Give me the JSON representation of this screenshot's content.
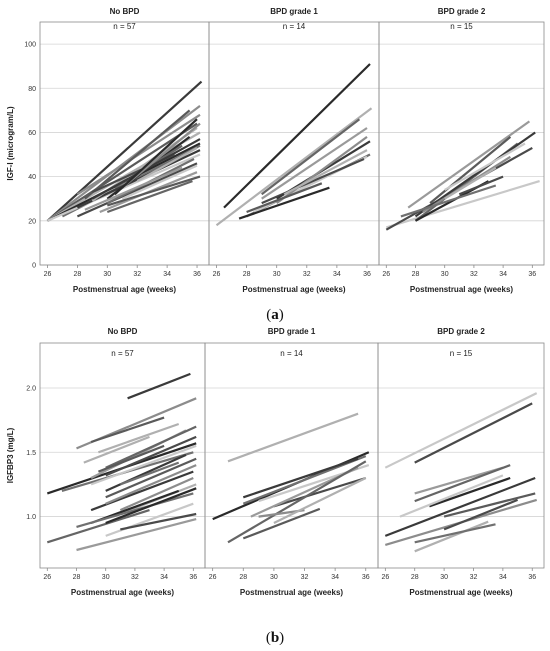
{
  "captions": {
    "a_open": "(",
    "a_letter": "a",
    "a_close": ")",
    "b_open": "(",
    "b_letter": "b",
    "b_close": ")"
  },
  "chart_data": [
    {
      "type": "line",
      "ylabel": "IGF-I (microgram/L)",
      "xlabel": "Postmenstrual age (weeks)",
      "xlim": [
        25.5,
        36.8
      ],
      "ylim": [
        0,
        110
      ],
      "xticks": [
        26,
        28,
        30,
        32,
        34,
        36
      ],
      "yticks": [
        0,
        20,
        40,
        60,
        80,
        100
      ],
      "grid": "horizontal",
      "panels": [
        {
          "title": "No BPD",
          "n_label": "n = 57",
          "series": [
            {
              "x": [
                26,
                36.3
              ],
              "y": [
                20,
                83
              ]
            },
            {
              "x": [
                26,
                36.2
              ],
              "y": [
                20,
                72
              ]
            },
            {
              "x": [
                26,
                36
              ],
              "y": [
                20,
                64
              ]
            },
            {
              "x": [
                26,
                36.2
              ],
              "y": [
                20,
                60
              ]
            },
            {
              "x": [
                26,
                36.2
              ],
              "y": [
                20,
                55
              ]
            },
            {
              "x": [
                27,
                36.2
              ],
              "y": [
                22,
                54
              ]
            },
            {
              "x": [
                26,
                36.2
              ],
              "y": [
                20,
                50
              ]
            },
            {
              "x": [
                28,
                36
              ],
              "y": [
                22,
                46
              ]
            },
            {
              "x": [
                29.5,
                36
              ],
              "y": [
                24,
                42
              ]
            },
            {
              "x": [
                30,
                35.7
              ],
              "y": [
                24,
                38
              ]
            },
            {
              "x": [
                28,
                36.2
              ],
              "y": [
                26,
                52
              ]
            },
            {
              "x": [
                28,
                36.2
              ],
              "y": [
                32,
                68
              ]
            },
            {
              "x": [
                28.5,
                35.5
              ],
              "y": [
                30,
                70
              ]
            },
            {
              "x": [
                29,
                36
              ],
              "y": [
                29,
                62
              ]
            },
            {
              "x": [
                30,
                35.5
              ],
              "y": [
                30,
                58
              ]
            },
            {
              "x": [
                30,
                35.8
              ],
              "y": [
                28,
                48
              ]
            },
            {
              "x": [
                31,
                36
              ],
              "y": [
                30,
                45
              ]
            },
            {
              "x": [
                29,
                34.5
              ],
              "y": [
                33,
                50
              ]
            },
            {
              "x": [
                28.5,
                35
              ],
              "y": [
                25,
                44
              ]
            },
            {
              "x": [
                30.5,
                35
              ],
              "y": [
                35,
                54
              ]
            },
            {
              "x": [
                29,
                36.2
              ],
              "y": [
                30,
                57
              ]
            },
            {
              "x": [
                31,
                36.2
              ],
              "y": [
                35,
                64
              ]
            },
            {
              "x": [
                30,
                36.2
              ],
              "y": [
                27,
                40
              ]
            },
            {
              "x": [
                32,
                36
              ],
              "y": [
                38,
                53
              ]
            },
            {
              "x": [
                30.5,
                36
              ],
              "y": [
                32,
                66
              ]
            }
          ]
        },
        {
          "title": "BPD grade 1",
          "n_label": "n = 14",
          "series": [
            {
              "x": [
                26,
                36.3
              ],
              "y": [
                18,
                71
              ]
            },
            {
              "x": [
                26.5,
                36.2
              ],
              "y": [
                26,
                91
              ]
            },
            {
              "x": [
                28,
                36.2
              ],
              "y": [
                22,
                50
              ]
            },
            {
              "x": [
                28.5,
                36
              ],
              "y": [
                24,
                49
              ]
            },
            {
              "x": [
                29,
                35.8
              ],
              "y": [
                28,
                48
              ]
            },
            {
              "x": [
                29,
                36
              ],
              "y": [
                30,
                62
              ]
            },
            {
              "x": [
                29,
                35.5
              ],
              "y": [
                32,
                66
              ]
            },
            {
              "x": [
                30,
                36.2
              ],
              "y": [
                30,
                56
              ]
            },
            {
              "x": [
                30,
                36
              ],
              "y": [
                28,
                58
              ]
            },
            {
              "x": [
                28,
                33
              ],
              "y": [
                24,
                37
              ]
            },
            {
              "x": [
                30.5,
                36
              ],
              "y": [
                32,
                52
              ]
            },
            {
              "x": [
                27.5,
                33.5
              ],
              "y": [
                21,
                35
              ]
            }
          ]
        },
        {
          "title": "BPD grade 2",
          "n_label": "n = 15",
          "series": [
            {
              "x": [
                26,
                36.5
              ],
              "y": [
                17,
                38
              ]
            },
            {
              "x": [
                26,
                36
              ],
              "y": [
                16,
                53
              ]
            },
            {
              "x": [
                27.5,
                35.8
              ],
              "y": [
                26,
                65
              ]
            },
            {
              "x": [
                28,
                35
              ],
              "y": [
                20,
                55
              ]
            },
            {
              "x": [
                28,
                36.2
              ],
              "y": [
                22,
                60
              ]
            },
            {
              "x": [
                28.5,
                34.5
              ],
              "y": [
                24,
                49
              ]
            },
            {
              "x": [
                29,
                34.5
              ],
              "y": [
                28,
                58
              ]
            },
            {
              "x": [
                30,
                33.5
              ],
              "y": [
                30,
                44
              ]
            },
            {
              "x": [
                28,
                33
              ],
              "y": [
                20,
                38
              ]
            },
            {
              "x": [
                27,
                33.5
              ],
              "y": [
                22,
                36
              ]
            },
            {
              "x": [
                30,
                35.5
              ],
              "y": [
                34,
                55
              ]
            },
            {
              "x": [
                31,
                34
              ],
              "y": [
                32,
                40
              ]
            }
          ]
        }
      ]
    },
    {
      "type": "line",
      "ylabel": "IGFBP3 (mg/L)",
      "xlabel": "Postmenstrual age (weeks)",
      "xlim": [
        25.5,
        36.8
      ],
      "ylim": [
        0.6,
        2.35
      ],
      "xticks": [
        26,
        28,
        30,
        32,
        34,
        36
      ],
      "yticks": [
        1.0,
        1.5,
        2.0
      ],
      "ytick_labels": [
        "1.0",
        "1.5",
        "2.0"
      ],
      "grid": "horizontal",
      "panels": [
        {
          "title": "No BPD",
          "n_label": "n = 57",
          "series": [
            {
              "x": [
                31.5,
                35.8
              ],
              "y": [
                1.92,
                2.11
              ]
            },
            {
              "x": [
                28,
                36.2
              ],
              "y": [
                1.53,
                1.92
              ]
            },
            {
              "x": [
                29,
                34
              ],
              "y": [
                1.58,
                1.77
              ]
            },
            {
              "x": [
                29.5,
                35
              ],
              "y": [
                1.5,
                1.72
              ]
            },
            {
              "x": [
                26,
                36.2
              ],
              "y": [
                1.18,
                1.57
              ]
            },
            {
              "x": [
                27,
                36
              ],
              "y": [
                1.2,
                1.5
              ]
            },
            {
              "x": [
                29,
                36.2
              ],
              "y": [
                1.25,
                1.55
              ]
            },
            {
              "x": [
                30,
                36.2
              ],
              "y": [
                1.32,
                1.62
              ]
            },
            {
              "x": [
                29,
                35.5
              ],
              "y": [
                1.3,
                1.67
              ]
            },
            {
              "x": [
                30,
                36.2
              ],
              "y": [
                1.38,
                1.7
              ]
            },
            {
              "x": [
                29,
                36
              ],
              "y": [
                1.05,
                1.35
              ]
            },
            {
              "x": [
                30,
                36.2
              ],
              "y": [
                1.1,
                1.4
              ]
            },
            {
              "x": [
                30,
                36.2
              ],
              "y": [
                1.15,
                1.45
              ]
            },
            {
              "x": [
                30.5,
                36.2
              ],
              "y": [
                1.0,
                1.25
              ]
            },
            {
              "x": [
                29,
                35
              ],
              "y": [
                0.95,
                1.2
              ]
            },
            {
              "x": [
                28,
                36
              ],
              "y": [
                0.92,
                1.18
              ]
            },
            {
              "x": [
                30,
                36
              ],
              "y": [
                0.85,
                1.1
              ]
            },
            {
              "x": [
                31,
                36.2
              ],
              "y": [
                0.9,
                1.02
              ]
            },
            {
              "x": [
                28,
                36.2
              ],
              "y": [
                0.74,
                0.98
              ]
            },
            {
              "x": [
                26,
                33
              ],
              "y": [
                0.8,
                1.05
              ]
            },
            {
              "x": [
                30,
                35.5
              ],
              "y": [
                1.2,
                1.48
              ]
            },
            {
              "x": [
                31,
                36
              ],
              "y": [
                1.05,
                1.3
              ]
            },
            {
              "x": [
                29.5,
                34
              ],
              "y": [
                1.35,
                1.55
              ]
            },
            {
              "x": [
                28.5,
                33
              ],
              "y": [
                1.42,
                1.62
              ]
            },
            {
              "x": [
                30,
                36.2
              ],
              "y": [
                0.95,
                1.22
              ]
            },
            {
              "x": [
                31,
                35
              ],
              "y": [
                1.25,
                1.42
              ]
            }
          ]
        },
        {
          "title": "BPD grade 1",
          "n_label": "n = 14",
          "series": [
            {
              "x": [
                27,
                35.5
              ],
              "y": [
                1.43,
                1.8
              ]
            },
            {
              "x": [
                26,
                36.2
              ],
              "y": [
                0.98,
                1.5
              ]
            },
            {
              "x": [
                28,
                36
              ],
              "y": [
                1.1,
                1.47
              ]
            },
            {
              "x": [
                29,
                36.2
              ],
              "y": [
                1.12,
                1.4
              ]
            },
            {
              "x": [
                30,
                36
              ],
              "y": [
                1.08,
                1.3
              ]
            },
            {
              "x": [
                28.5,
                35.5
              ],
              "y": [
                1.0,
                1.38
              ]
            },
            {
              "x": [
                27,
                36
              ],
              "y": [
                0.8,
                1.43
              ]
            },
            {
              "x": [
                28,
                35.5
              ],
              "y": [
                1.15,
                1.45
              ]
            },
            {
              "x": [
                29,
                32
              ],
              "y": [
                1.0,
                1.05
              ]
            },
            {
              "x": [
                28,
                33
              ],
              "y": [
                0.83,
                1.06
              ]
            },
            {
              "x": [
                30,
                36
              ],
              "y": [
                0.95,
                1.3
              ]
            }
          ]
        },
        {
          "title": "BPD grade 2",
          "n_label": "n = 15",
          "series": [
            {
              "x": [
                26,
                36.3
              ],
              "y": [
                1.38,
                1.96
              ]
            },
            {
              "x": [
                28,
                36
              ],
              "y": [
                1.42,
                1.88
              ]
            },
            {
              "x": [
                28,
                34
              ],
              "y": [
                1.18,
                1.38
              ]
            },
            {
              "x": [
                28,
                34.5
              ],
              "y": [
                1.12,
                1.4
              ]
            },
            {
              "x": [
                26,
                36.2
              ],
              "y": [
                0.85,
                1.3
              ]
            },
            {
              "x": [
                26,
                36.3
              ],
              "y": [
                0.78,
                1.13
              ]
            },
            {
              "x": [
                30,
                36.2
              ],
              "y": [
                1.0,
                1.18
              ]
            },
            {
              "x": [
                28,
                33
              ],
              "y": [
                0.73,
                0.96
              ]
            },
            {
              "x": [
                29,
                34.5
              ],
              "y": [
                1.08,
                1.3
              ]
            },
            {
              "x": [
                28,
                33.5
              ],
              "y": [
                0.8,
                0.94
              ]
            },
            {
              "x": [
                27,
                34
              ],
              "y": [
                1.0,
                1.32
              ]
            },
            {
              "x": [
                30,
                35
              ],
              "y": [
                0.9,
                1.13
              ]
            }
          ]
        }
      ]
    }
  ]
}
